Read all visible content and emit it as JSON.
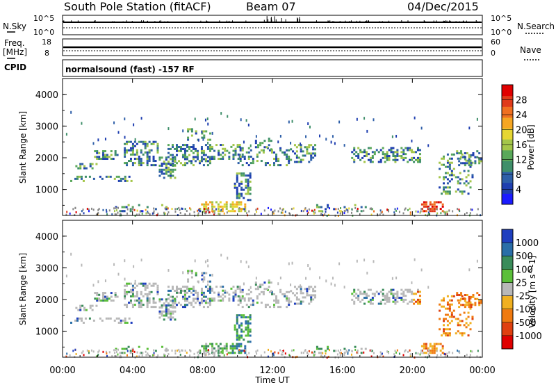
{
  "header": {
    "station": "South Pole Station (fitACF)",
    "beam": "Beam 07",
    "date": "04/Dec/2015"
  },
  "panels": {
    "nsky_label": "N.Sky",
    "nsky_ticks": [
      "10^5",
      "10^0"
    ],
    "nsearch_label": "N.Search",
    "nsearch_ticks": [
      "10^5",
      "10^0"
    ],
    "freq_label_1": "Freq.",
    "freq_label_2": "[MHz]",
    "freq_ticks": [
      "18",
      "8"
    ],
    "nave_label": "Nave",
    "nave_ticks": [
      "60",
      "0"
    ],
    "cpid_label": "CPID",
    "cpid_text": "normalsound (fast) -157 RF"
  },
  "chart_data": [
    {
      "type": "heatmap",
      "title": "",
      "xlabel": "",
      "ylabel": "Slant Range [km]",
      "xlim_hours": [
        0,
        24
      ],
      "ylim": [
        180,
        4500
      ],
      "yticks": [
        "4000",
        "3000",
        "2000",
        "1000"
      ],
      "colorbar_label": "Power [dB]",
      "colorbar_ticks": [
        "28",
        "24",
        "20",
        "16",
        "12",
        "8",
        "4"
      ],
      "colorbar_colors": [
        "#1b1bff",
        "#1f3fb0",
        "#2e5fa8",
        "#3f8f6a",
        "#59a85a",
        "#a4c64a",
        "#e6d633",
        "#f5a623",
        "#f07020",
        "#e03a1a",
        "#e00000"
      ]
    },
    {
      "type": "heatmap",
      "title": "",
      "xlabel": "Time UT",
      "ylabel": "Slant Range [km]",
      "xlim_hours": [
        0,
        24
      ],
      "ylim": [
        180,
        4500
      ],
      "yticks": [
        "4000",
        "3000",
        "2000",
        "1000"
      ],
      "xticks": [
        "00:00",
        "04:00",
        "08:00",
        "12:00",
        "16:00",
        "20:00",
        "00:00"
      ],
      "colorbar_label": "Velocity [m s^-1]",
      "colorbar_ticks": [
        "1000",
        "500",
        "100",
        "25",
        "-25",
        "-100",
        "-500",
        "-1000"
      ],
      "colorbar_colors": [
        "#1f3fbf",
        "#2a6ea8",
        "#3a8c5a",
        "#5bbf3a",
        "#b8b8b8",
        "#f0b020",
        "#f07a10",
        "#e04010",
        "#e00000"
      ]
    }
  ]
}
